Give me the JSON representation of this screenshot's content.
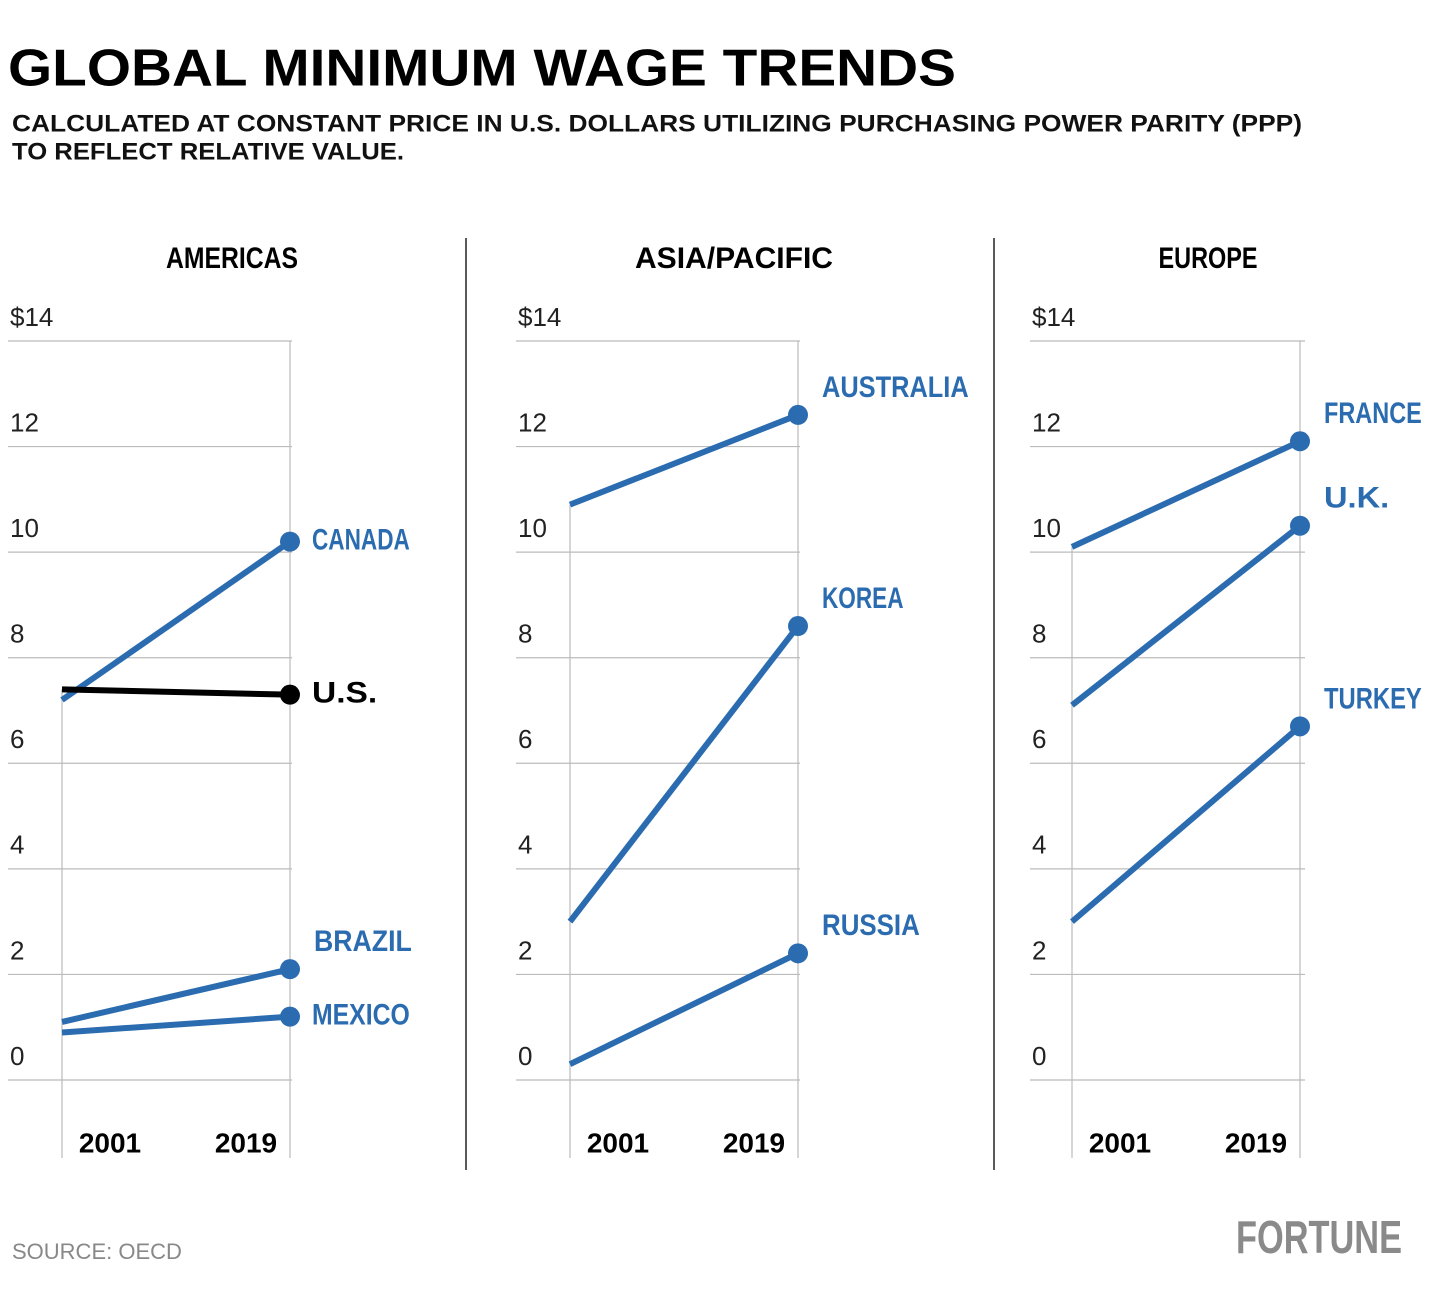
{
  "title": "GLOBAL MINIMUM WAGE TRENDS",
  "subtitle": [
    "CALCULATED AT CONSTANT PRICE IN U.S. DOLLARS UTILIZING PURCHASING POWER PARITY (PPP)",
    "TO REFLECT RELATIVE VALUE."
  ],
  "source": "SOURCE: OECD",
  "logo": "FORTUNE",
  "chart_data": [
    {
      "type": "line",
      "title": "AMERICAS",
      "categories": [
        "2001",
        "2019"
      ],
      "ylim": [
        0,
        14
      ],
      "yticks": [
        0,
        2,
        4,
        6,
        8,
        10,
        12,
        {
          "value": 14,
          "label": "$14"
        }
      ],
      "grid": true,
      "series": [
        {
          "name": "CANADA",
          "color": "#2b6cb0",
          "values": [
            7.2,
            10.2
          ]
        },
        {
          "name": "U.S.",
          "color": "#000000",
          "values": [
            7.4,
            7.3
          ]
        },
        {
          "name": "BRAZIL",
          "color": "#2b6cb0",
          "values": [
            1.1,
            2.1
          ]
        },
        {
          "name": "MEXICO",
          "color": "#2b6cb0",
          "values": [
            0.9,
            1.2
          ]
        }
      ]
    },
    {
      "type": "line",
      "title": "ASIA/PACIFIC",
      "categories": [
        "2001",
        "2019"
      ],
      "ylim": [
        0,
        14
      ],
      "yticks": [
        0,
        2,
        4,
        6,
        8,
        10,
        12,
        {
          "value": 14,
          "label": "$14"
        }
      ],
      "grid": true,
      "series": [
        {
          "name": "AUSTRALIA",
          "color": "#2b6cb0",
          "values": [
            10.9,
            12.6
          ]
        },
        {
          "name": "KOREA",
          "color": "#2b6cb0",
          "values": [
            3.0,
            8.6
          ]
        },
        {
          "name": "RUSSIA",
          "color": "#2b6cb0",
          "values": [
            0.3,
            2.4
          ]
        }
      ]
    },
    {
      "type": "line",
      "title": "EUROPE",
      "categories": [
        "2001",
        "2019"
      ],
      "ylim": [
        0,
        14
      ],
      "yticks": [
        0,
        2,
        4,
        6,
        8,
        10,
        12,
        {
          "value": 14,
          "label": "$14"
        }
      ],
      "grid": true,
      "series": [
        {
          "name": "FRANCE",
          "color": "#2b6cb0",
          "values": [
            10.1,
            12.1
          ]
        },
        {
          "name": "U.K.",
          "color": "#2b6cb0",
          "values": [
            7.1,
            10.5
          ]
        },
        {
          "name": "TURKEY",
          "color": "#2b6cb0",
          "values": [
            3.0,
            6.7
          ]
        }
      ]
    }
  ]
}
